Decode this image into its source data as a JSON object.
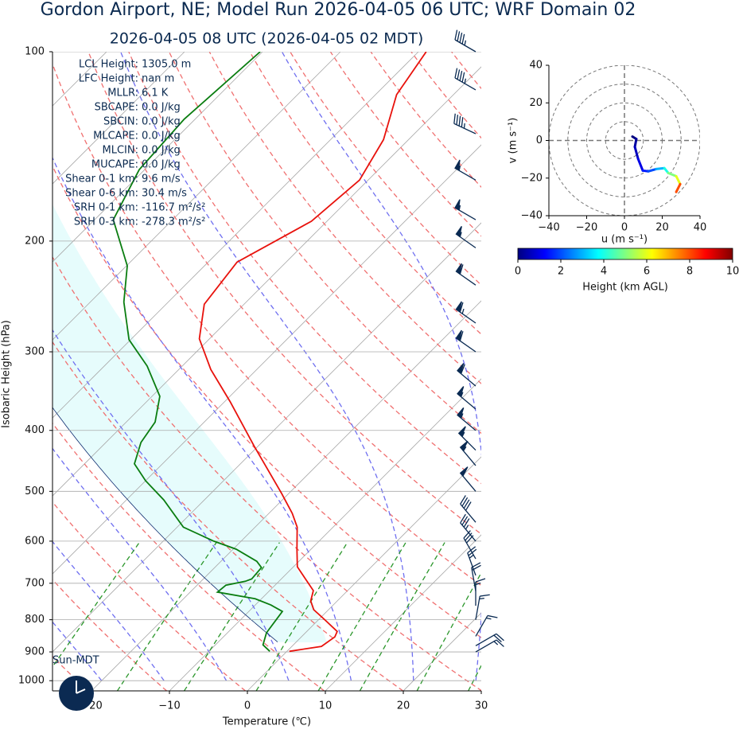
{
  "chart_data": [
    {
      "type": "skewt",
      "title": "Gordon Airport, NE; Model Run 2026-04-05 06 UTC; WRF Domain 02",
      "subtitle": "2026-04-05 08 UTC  (2026-04-05 02 MDT)",
      "xlabel": "Temperature (℃)",
      "ylabel": "Isobaric Height (hPa)",
      "xlim": [
        -25,
        30
      ],
      "ylim": [
        1038,
        100
      ],
      "log_y": true,
      "xticks": [
        {
          "value": -20,
          "label": "−20"
        },
        {
          "value": -10,
          "label": "−10"
        },
        0,
        10,
        20,
        30
      ],
      "yticks": [
        100,
        200,
        300,
        400,
        500,
        600,
        700,
        800,
        900,
        1000
      ],
      "grid": true,
      "parameters": [
        {
          "label": "LCL Height:",
          "value": "1305.0 m"
        },
        {
          "label": "LFC Height:",
          "value": "nan m"
        },
        {
          "label": "MLLR:",
          "value": "6.1 K"
        },
        {
          "label": "SBCAPE:",
          "value": "0.0 J/kg"
        },
        {
          "label": "SBCIN:",
          "value": "0.0 J/kg"
        },
        {
          "label": "MLCAPE:",
          "value": "0.0 J/kg"
        },
        {
          "label": "MLCIN:",
          "value": "0.0 J/kg"
        },
        {
          "label": "MUCAPE:",
          "value": "0.0 J/kg"
        },
        {
          "label": "Shear 0-1 km:",
          "value": "9.6 m/s"
        },
        {
          "label": "Shear 0-6 km:",
          "value": "30.4 m/s"
        },
        {
          "label": "SRH 0-1 km:",
          "value": "-116.7 m²/s²"
        },
        {
          "label": "SRH 0-3 km:",
          "value": "-278.3 m²/s²"
        }
      ],
      "clock_label": "Sun-MDT",
      "temperature": {
        "color": "#e8120c",
        "pressure": [
          898,
          882,
          852,
          835,
          801,
          771,
          747,
          719,
          689,
          659,
          618,
          570,
          542,
          504,
          423,
          360,
          320,
          286,
          252,
          216,
          186,
          160,
          138,
          117,
          100
        ],
        "values": [
          0.3,
          3.8,
          4.3,
          3.9,
          0.9,
          -1.9,
          -3.4,
          -4.4,
          -6.9,
          -9.5,
          -11.8,
          -14.6,
          -17.0,
          -20.9,
          -30.6,
          -39.3,
          -45.9,
          -51.3,
          -55.1,
          -56.3,
          -52.0,
          -51.1,
          -53.2,
          -57.3,
          -59.0
        ]
      },
      "dewpoint": {
        "color": "#0a7d10",
        "pressure": [
          898,
          877,
          839,
          776,
          758,
          741,
          723,
          705,
          695,
          689,
          661,
          646,
          618,
          600,
          570,
          516,
          481,
          452,
          418,
          388,
          353,
          316,
          287,
          250,
          219,
          185,
          154,
          128,
          100
        ],
        "values": [
          -2.2,
          -3.9,
          -5.0,
          -5.7,
          -8.0,
          -10.8,
          -16.5,
          -16.3,
          -14.3,
          -13.8,
          -14.0,
          -15.4,
          -19.6,
          -23.5,
          -29.2,
          -35.2,
          -40.0,
          -43.6,
          -45.5,
          -46.3,
          -49.0,
          -54.5,
          -60.2,
          -65.7,
          -69.9,
          -77.6,
          -80.7,
          -81.4,
          -80.3
        ]
      },
      "wind": {
        "color": "#0a2a52",
        "pressure": [
          100,
          115,
          135,
          160,
          185,
          205,
          235,
          270,
          300,
          340,
          370,
          400,
          430,
          455,
          500,
          560,
          600,
          640,
          680,
          720,
          760,
          800,
          850,
          880,
          900
        ],
        "direction": [
          300,
          300,
          295,
          300,
          300,
          305,
          305,
          305,
          305,
          310,
          310,
          310,
          315,
          320,
          320,
          320,
          320,
          330,
          340,
          350,
          0,
          10,
          30,
          60,
          60
        ],
        "speed": [
          45,
          45,
          45,
          55,
          55,
          55,
          60,
          65,
          60,
          60,
          55,
          55,
          55,
          55,
          50,
          40,
          35,
          30,
          25,
          20,
          15,
          15,
          15,
          20,
          15
        ]
      }
    },
    {
      "type": "hodograph",
      "xlabel": "u (m s⁻¹)",
      "ylabel": "v (m s⁻¹)",
      "xlim": [
        -40,
        40
      ],
      "ylim": [
        -40,
        40
      ],
      "xticks": [
        {
          "value": -40,
          "label": "−40"
        },
        {
          "value": -20,
          "label": "−20"
        },
        0,
        20,
        40
      ],
      "yticks": [
        {
          "value": -40,
          "label": "−40"
        },
        {
          "value": -20,
          "label": "−20"
        },
        0,
        20,
        40
      ],
      "rings": [
        10,
        20,
        30,
        40
      ],
      "u": [
        4.2,
        6.3,
        5.5,
        7.2,
        9.7,
        12.6,
        16.8,
        21.1,
        23.2,
        27.4,
        29.5,
        27.4
      ],
      "v": [
        2.1,
        0.8,
        -3.4,
        -9.7,
        -16.0,
        -16.4,
        -15.2,
        -14.7,
        -17.3,
        -19.0,
        -23.2,
        -27.4
      ],
      "height": [
        0,
        0.3,
        0.6,
        1,
        1.5,
        2,
        3,
        4,
        5,
        6,
        8,
        10
      ],
      "colorbar": {
        "label": "Height (km AGL)",
        "lim": [
          0,
          10
        ],
        "ticks": [
          0,
          2,
          4,
          6,
          8,
          10
        ]
      }
    }
  ]
}
